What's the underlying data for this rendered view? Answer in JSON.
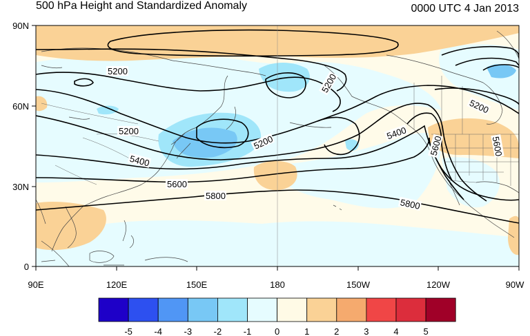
{
  "header": {
    "title": "500 hPa Height and Standardized Anomaly",
    "valid_time": "0000 UTC 4 Jan 2013"
  },
  "map": {
    "lat_ticks": [
      "90N",
      "60N",
      "30N",
      "0"
    ],
    "lon_ticks": [
      "90E",
      "120E",
      "150E",
      "180",
      "150W",
      "120W",
      "90W"
    ],
    "contour_labels": [
      {
        "text": "5200",
        "name": "contour-label-5200-a"
      },
      {
        "text": "5200",
        "name": "contour-label-5200-b"
      },
      {
        "text": "5200",
        "name": "contour-label-5200-c"
      },
      {
        "text": "5200",
        "name": "contour-label-5200-d"
      },
      {
        "text": "5200",
        "name": "contour-label-5200-e"
      },
      {
        "text": "5400",
        "name": "contour-label-5400-a"
      },
      {
        "text": "5400",
        "name": "contour-label-5400-b"
      },
      {
        "text": "5600",
        "name": "contour-label-5600-a"
      },
      {
        "text": "5600",
        "name": "contour-label-5600-b"
      },
      {
        "text": "5600",
        "name": "contour-label-5600-c"
      },
      {
        "text": "5800",
        "name": "contour-label-5800-a"
      },
      {
        "text": "5800",
        "name": "contour-label-5800-b"
      }
    ]
  },
  "colorbar": {
    "labels": [
      "-5",
      "-4",
      "-3",
      "-2",
      "-1",
      "0",
      "1",
      "2",
      "3",
      "4",
      "5"
    ],
    "colors": [
      "#1e00c8",
      "#2d50f0",
      "#5096f5",
      "#78c8f5",
      "#a0e6fa",
      "#e6fcff",
      "#fffae6",
      "#fad296",
      "#f5aa6e",
      "#f04646",
      "#dc2d3c",
      "#a00028"
    ]
  },
  "colors": {
    "ocean_background": "#fffbe9",
    "neg1": "#e6fcff",
    "neg2": "#a0e6fa",
    "neg3": "#78c8f5",
    "pos1": "#fad296"
  }
}
